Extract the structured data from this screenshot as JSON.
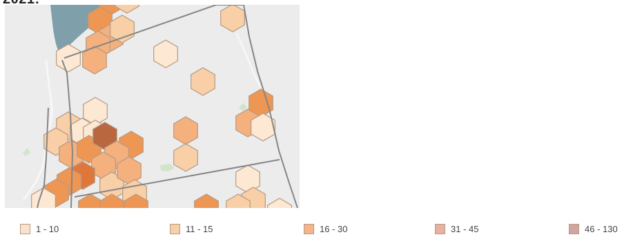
{
  "page": {
    "top_fragment": "2021:"
  },
  "map": {
    "type": "hexbin-choropleth",
    "colors": {
      "background": "#ececec",
      "water": "#7f9faa",
      "border": "#8a8a8a",
      "river": "#f0f0f0",
      "park": "#cfe3c7"
    }
  },
  "legend": [
    {
      "label": "1 - 10",
      "color": "#fbe3cb"
    },
    {
      "label": "11 - 15",
      "color": "#f8d0a8"
    },
    {
      "label": "16 - 30",
      "color": "#f5b58a"
    },
    {
      "label": "31 - 45",
      "color": "#e8b0a0"
    },
    {
      "label": "46 - 130",
      "color": "#d4a5a0"
    }
  ],
  "hex_fill_colors": {
    "1": "#fde8d4",
    "2": "#f8cfa6",
    "3": "#f4b07d",
    "4": "#ee9654",
    "5": "#df773b",
    "6": "#b8673f"
  }
}
